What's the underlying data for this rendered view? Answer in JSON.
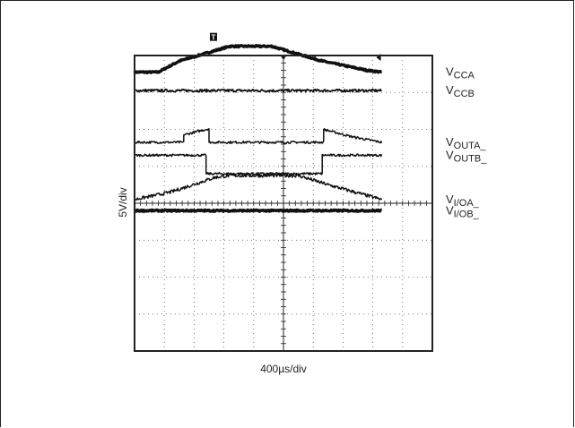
{
  "chart_data": {
    "type": "line",
    "title": "",
    "xlabel": "400µs/div",
    "ylabel": "5V/div",
    "divisions": {
      "x": 10,
      "y": 8
    },
    "grid": true,
    "colors": {
      "trace": "#111111",
      "grid": "#555555",
      "frame": "#222222"
    },
    "series": [
      {
        "name": "VCCA",
        "label_main": "V",
        "label_sub": "CCA",
        "points": [
          [
            0,
            7.55
          ],
          [
            0.8,
            7.55
          ],
          [
            1.5,
            7.85
          ],
          [
            3.2,
            8.25
          ],
          [
            4.6,
            8.25
          ],
          [
            6.3,
            7.85
          ],
          [
            7.8,
            7.6
          ],
          [
            8.3,
            7.55
          ]
        ],
        "width": 3.5,
        "noise": 0.02
      },
      {
        "name": "VCCB",
        "label_main": "V",
        "label_sub": "CCB",
        "points": [
          [
            0,
            7.05
          ],
          [
            8.3,
            7.05
          ]
        ],
        "width": 1.8,
        "noise": 0.035
      },
      {
        "name": "VOUTA_",
        "label_main": "V",
        "label_sub": "OUTA_",
        "points": [
          [
            0,
            5.65
          ],
          [
            1.65,
            5.65
          ],
          [
            1.65,
            5.85
          ],
          [
            2.5,
            6.02
          ],
          [
            2.5,
            5.65
          ],
          [
            6.35,
            5.65
          ],
          [
            6.35,
            6.0
          ],
          [
            7.3,
            5.8
          ],
          [
            8.3,
            5.65
          ]
        ],
        "width": 1.5,
        "noise": 0.03
      },
      {
        "name": "VOUTB_",
        "label_main": "V",
        "label_sub": "OUTB_",
        "points": [
          [
            0,
            5.3
          ],
          [
            2.4,
            5.3
          ],
          [
            2.4,
            4.8
          ],
          [
            6.3,
            4.8
          ],
          [
            6.3,
            5.3
          ],
          [
            8.3,
            5.3
          ]
        ],
        "width": 1.5,
        "noise": 0.03
      },
      {
        "name": "VI/OA_",
        "label_main": "V",
        "label_sub": "I/OA_",
        "points": [
          [
            0,
            4.1
          ],
          [
            1.2,
            4.3
          ],
          [
            2.7,
            4.7
          ],
          [
            3.2,
            4.75
          ],
          [
            5.5,
            4.75
          ],
          [
            6.5,
            4.5
          ],
          [
            8.3,
            4.1
          ]
        ],
        "width": 1.5,
        "noise": 0.045
      },
      {
        "name": "VI/OB_",
        "label_main": "V",
        "label_sub": "I/OB_",
        "points": [
          [
            0,
            3.8
          ],
          [
            8.3,
            3.8
          ]
        ],
        "width": 3.5,
        "noise": 0.02
      }
    ],
    "markers": [
      {
        "symbol": "T",
        "x": 2.65,
        "y": 8.25,
        "name": "trigger-marker-t"
      },
      {
        "symbol": "◆",
        "x": 8.3,
        "y": 7.95,
        "name": "trigger-level-marker"
      }
    ]
  }
}
